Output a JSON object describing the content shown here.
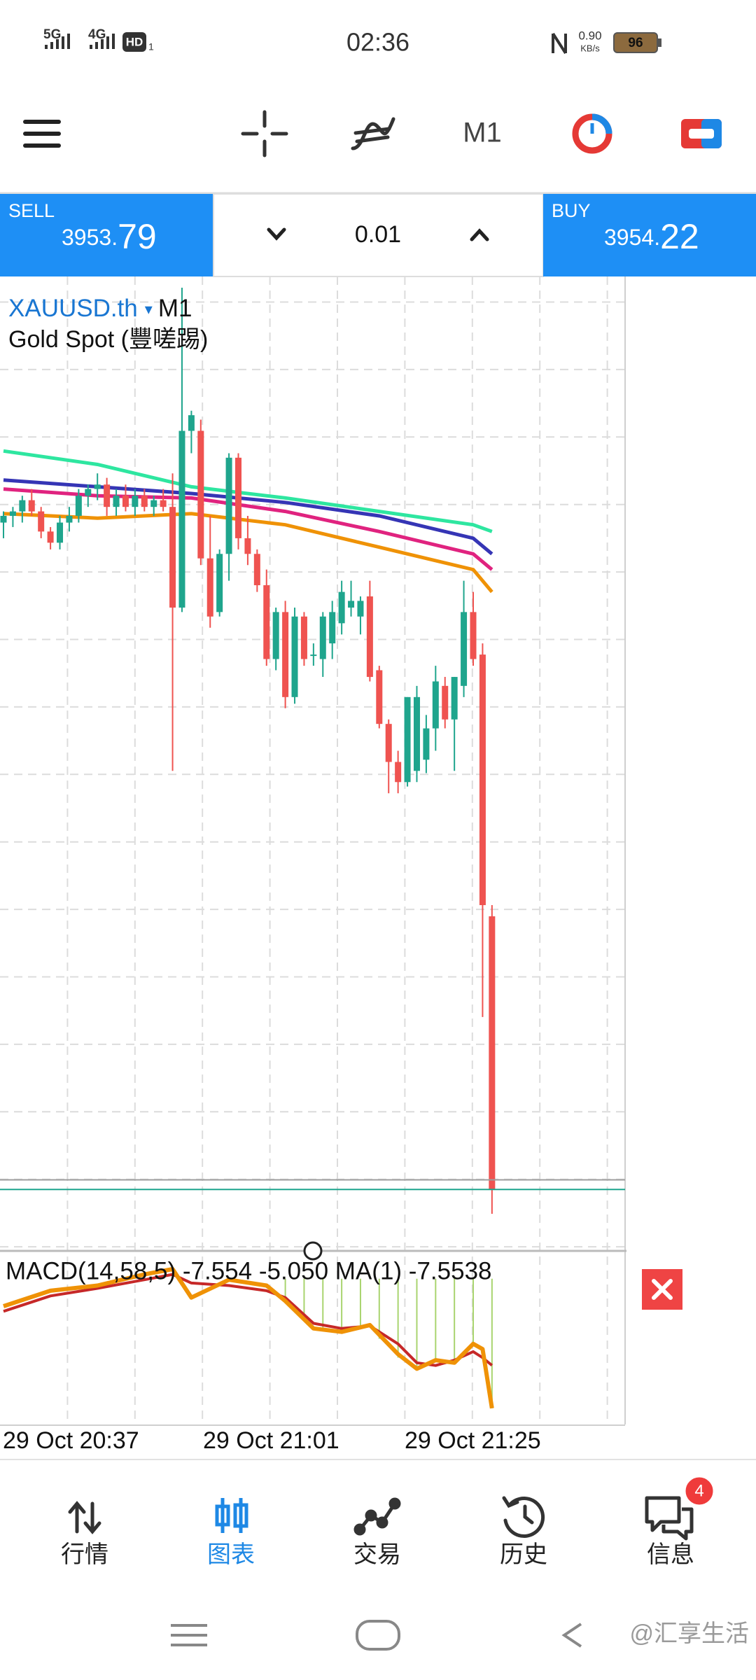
{
  "status_bar": {
    "network_1": "5G",
    "network_2": "4G",
    "hd": "HD",
    "hd_sub": "1",
    "time": "02:36",
    "speed_value": "0.90",
    "speed_unit": "KB/s",
    "battery": "96"
  },
  "toolbar": {
    "timeframe": "M1"
  },
  "trade_panel": {
    "sell": {
      "label": "SELL",
      "price_main": "3953.",
      "price_pips": "79"
    },
    "volume": "0.01",
    "buy": {
      "label": "BUY",
      "price_main": "3954.",
      "price_pips": "22"
    }
  },
  "chart_data": [
    {
      "type": "candlestick",
      "symbol": "XAUUSD.th",
      "timeframe": "M1",
      "description": "Gold Spot (豐嗟踢)",
      "ylim": [
        3951.2,
        3994.6
      ],
      "grid": true,
      "colors": {
        "up": "#1fa58d",
        "down": "#ef5350"
      },
      "open": [
        3983.6,
        3983.9,
        3984.1,
        3984.6,
        3984.1,
        3983.2,
        3982.7,
        3983.6,
        3983.9,
        3984.8,
        3985.1,
        3985.3,
        3984.3,
        3984.8,
        3984.3,
        3984.8,
        3984.3,
        3984.6,
        3984.3,
        3979.8,
        3987.7,
        3987.7,
        3982.0,
        3979.6,
        3982.2,
        3986.5,
        3982.9,
        3982.2,
        3980.8,
        3977.5,
        3979.6,
        3975.8,
        3979.4,
        3977.7,
        3977.5,
        3978.2,
        3979.1,
        3979.8,
        3979.4,
        3980.3,
        3977.0,
        3974.6,
        3972.9,
        3972.0,
        3972.5,
        3973.0,
        3974.4,
        3976.3,
        3974.8,
        3976.3,
        3979.6,
        3977.7,
        3966.0
      ],
      "high": [
        3984.1,
        3984.3,
        3984.8,
        3985.1,
        3984.3,
        3983.4,
        3983.9,
        3984.3,
        3985.1,
        3985.3,
        3985.8,
        3985.6,
        3985.1,
        3985.3,
        3985.1,
        3985.1,
        3984.8,
        3985.1,
        3985.8,
        3994.1,
        3988.6,
        3988.2,
        3983.9,
        3982.4,
        3986.7,
        3986.7,
        3983.9,
        3982.4,
        3981.5,
        3979.8,
        3980.1,
        3979.8,
        3979.6,
        3978.2,
        3979.6,
        3980.1,
        3981.0,
        3981.0,
        3980.3,
        3981.0,
        3977.2,
        3974.8,
        3973.4,
        3975.8,
        3976.3,
        3975.0,
        3977.2,
        3976.7,
        3976.7,
        3981.0,
        3980.5,
        3978.2,
        3966.5
      ],
      "low": [
        3982.9,
        3983.4,
        3983.6,
        3983.9,
        3982.9,
        3982.4,
        3982.4,
        3983.2,
        3983.6,
        3984.3,
        3984.6,
        3983.9,
        3983.9,
        3984.1,
        3983.9,
        3984.1,
        3983.9,
        3984.1,
        3972.5,
        3979.6,
        3986.7,
        3981.7,
        3978.9,
        3979.4,
        3981.0,
        3982.4,
        3981.7,
        3980.5,
        3977.2,
        3977.0,
        3975.3,
        3975.5,
        3977.2,
        3977.2,
        3976.7,
        3977.5,
        3978.6,
        3979.4,
        3978.6,
        3976.5,
        3974.4,
        3971.5,
        3971.5,
        3971.8,
        3972.0,
        3972.4,
        3973.4,
        3974.4,
        3972.5,
        3975.8,
        3977.2,
        3961.5,
        3952.7
      ],
      "close": [
        3983.9,
        3984.1,
        3984.6,
        3984.1,
        3983.2,
        3982.7,
        3983.6,
        3983.9,
        3984.8,
        3985.1,
        3985.3,
        3984.3,
        3984.8,
        3984.3,
        3984.8,
        3984.3,
        3984.6,
        3984.3,
        3979.8,
        3987.7,
        3988.4,
        3982.0,
        3979.4,
        3982.2,
        3986.5,
        3982.9,
        3982.2,
        3980.8,
        3977.5,
        3979.6,
        3975.8,
        3979.4,
        3977.5,
        3977.7,
        3979.4,
        3979.6,
        3980.5,
        3980.1,
        3980.1,
        3976.7,
        3974.6,
        3972.9,
        3972.0,
        3975.8,
        3975.8,
        3974.4,
        3976.5,
        3974.8,
        3976.7,
        3979.6,
        3977.5,
        3966.5,
        3953.79
      ],
      "moving_averages": [
        {
          "color": "#2ee6a0",
          "x": [
            0,
            10,
            20,
            30,
            40,
            50,
            52
          ],
          "values": [
            3986.8,
            3986.2,
            3985.2,
            3984.7,
            3984.1,
            3983.5,
            3983.2
          ]
        },
        {
          "color": "#3535b5",
          "x": [
            0,
            10,
            20,
            30,
            40,
            50,
            52
          ],
          "values": [
            3985.5,
            3985.2,
            3984.9,
            3984.5,
            3983.9,
            3982.9,
            3982.2
          ]
        },
        {
          "color": "#e0237f",
          "x": [
            0,
            10,
            20,
            30,
            40,
            50,
            52
          ],
          "values": [
            3985.1,
            3984.8,
            3984.7,
            3984.1,
            3983.2,
            3982.2,
            3981.5
          ]
        },
        {
          "color": "#ef9206",
          "x": [
            0,
            10,
            20,
            30,
            40,
            50,
            52
          ],
          "values": [
            3984.0,
            3983.8,
            3984.0,
            3983.5,
            3982.5,
            3981.5,
            3980.5
          ]
        }
      ],
      "bid_line": 3953.79,
      "ask_line": 3954.22
    },
    {
      "type": "macd",
      "header": "MACD(14,58,5) -7.554 -5.050 MA(1) -7.5538",
      "ylim": [
        -8.5,
        1.5
      ],
      "series": [
        {
          "color": "#ef9206",
          "x": [
            0,
            5,
            10,
            15,
            18,
            20,
            24,
            28,
            30,
            33,
            36,
            39,
            42,
            44,
            46,
            48,
            50,
            51,
            52
          ],
          "values": [
            -1.6,
            -0.7,
            -0.4,
            0.25,
            0.56,
            -1.1,
            -0.06,
            -0.4,
            -1.3,
            -2.9,
            -3.1,
            -2.7,
            -4.4,
            -5.25,
            -4.75,
            -4.9,
            -3.8,
            -4.1,
            -7.554
          ]
        },
        {
          "color": "#c62828",
          "x": [
            0,
            5,
            10,
            15,
            18,
            20,
            24,
            28,
            30,
            33,
            36,
            39,
            42,
            44,
            46,
            48,
            50,
            51,
            52
          ],
          "values": [
            -1.9,
            -1.0,
            -0.56,
            -0.06,
            0.25,
            -0.25,
            -0.4,
            -0.7,
            -1.1,
            -2.6,
            -2.9,
            -2.75,
            -3.8,
            -4.9,
            -5.06,
            -4.75,
            -4.25,
            -4.6,
            -5.05
          ]
        }
      ],
      "histogram": {
        "color": "#a9d46f",
        "x": [
          30,
          32,
          34,
          36,
          38,
          40,
          42,
          44,
          46,
          48,
          50,
          52
        ],
        "values": [
          -1.3,
          -2.3,
          -3.0,
          -3.1,
          -2.8,
          -3.5,
          -4.6,
          -5.1,
          -4.8,
          -4.8,
          -3.9,
          -7.5538
        ]
      },
      "time_labels": [
        "29 Oct 20:37",
        "29 Oct 21:01",
        "29 Oct 21:25"
      ]
    }
  ],
  "nav": {
    "items": [
      "行情",
      "图表",
      "交易",
      "历史",
      "信息"
    ],
    "badge": 4
  },
  "watermark": "@汇享生活"
}
